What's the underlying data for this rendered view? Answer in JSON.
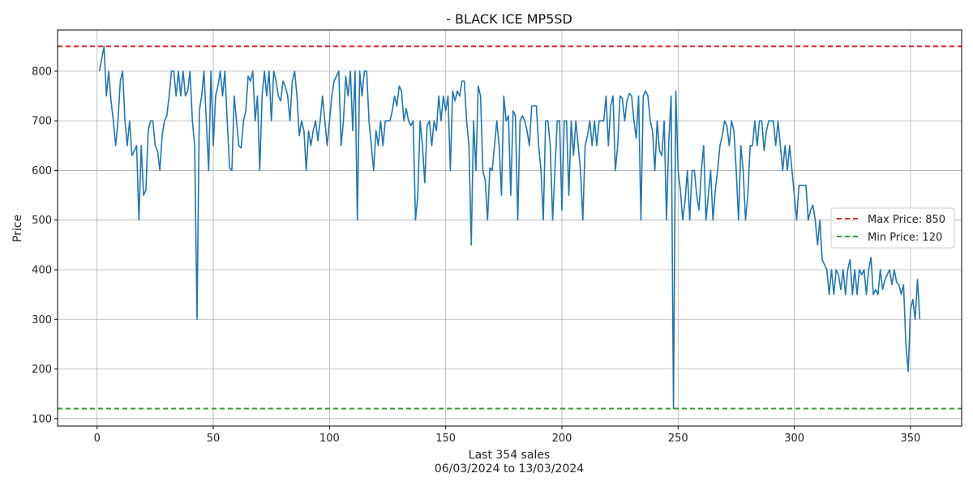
{
  "chart_data": {
    "type": "line",
    "title": "- BLACK ICE MP5SD",
    "xlabel": "Last 354 sales",
    "xlabel_sub": "06/03/2024 to 13/03/2024",
    "ylabel": "Price",
    "xlim": [
      -17,
      372
    ],
    "ylim": [
      85,
      883
    ],
    "xticks": [
      0,
      50,
      100,
      150,
      200,
      250,
      300,
      350
    ],
    "yticks": [
      100,
      200,
      300,
      400,
      500,
      600,
      700,
      800
    ],
    "grid": true,
    "legend_position": "center-right",
    "reference_lines": [
      {
        "name": "Max Price: 850",
        "value": 850,
        "color": "#d62728",
        "style": "dashed"
      },
      {
        "name": "Min Price: 120",
        "value": 120,
        "color": "#2ca02c",
        "style": "dashed"
      }
    ],
    "series": [
      {
        "color": "#1f77b4",
        "x": [
          1,
          3,
          4,
          5,
          6,
          7,
          8,
          9,
          10,
          11,
          12,
          13,
          14,
          15,
          16,
          17,
          18,
          19,
          20,
          21,
          22,
          23,
          24,
          25,
          26,
          27,
          28,
          29,
          30,
          31,
          32,
          33,
          34,
          35,
          36,
          37,
          38,
          39,
          40,
          41,
          42,
          43,
          44,
          45,
          46,
          47,
          48,
          49,
          50,
          51,
          52,
          53,
          54,
          55,
          56,
          57,
          58,
          59,
          60,
          61,
          62,
          63,
          64,
          65,
          66,
          67,
          68,
          69,
          70,
          71,
          72,
          73,
          74,
          75,
          76,
          77,
          78,
          79,
          80,
          81,
          82,
          83,
          84,
          85,
          86,
          87,
          88,
          89,
          90,
          91,
          92,
          93,
          94,
          95,
          96,
          97,
          98,
          99,
          100,
          101,
          102,
          103,
          104,
          105,
          106,
          107,
          108,
          109,
          110,
          111,
          112,
          113,
          114,
          115,
          116,
          117,
          118,
          119,
          120,
          121,
          122,
          123,
          124,
          125,
          126,
          127,
          128,
          129,
          130,
          131,
          132,
          133,
          134,
          135,
          136,
          137,
          138,
          139,
          140,
          141,
          142,
          143,
          144,
          145,
          146,
          147,
          148,
          149,
          150,
          151,
          152,
          153,
          154,
          155,
          156,
          157,
          158,
          159,
          160,
          161,
          162,
          163,
          164,
          165,
          166,
          167,
          168,
          169,
          170,
          171,
          172,
          173,
          174,
          175,
          176,
          177,
          178,
          179,
          180,
          181,
          182,
          183,
          184,
          185,
          186,
          187,
          188,
          189,
          190,
          191,
          192,
          193,
          194,
          195,
          196,
          197,
          198,
          199,
          200,
          201,
          202,
          203,
          204,
          205,
          206,
          207,
          208,
          209,
          210,
          211,
          212,
          213,
          214,
          215,
          216,
          217,
          218,
          219,
          220,
          221,
          222,
          223,
          224,
          225,
          226,
          227,
          228,
          229,
          230,
          231,
          232,
          233,
          234,
          235,
          236,
          237,
          238,
          239,
          240,
          241,
          242,
          243,
          244,
          245,
          246,
          247,
          248,
          249,
          250,
          251,
          252,
          253,
          254,
          255,
          256,
          257,
          258,
          259,
          260,
          261,
          262,
          263,
          264,
          265,
          266,
          267,
          268,
          269,
          270,
          271,
          272,
          273,
          274,
          275,
          276,
          277,
          278,
          279,
          280,
          281,
          282,
          283,
          284,
          285,
          286,
          287,
          288,
          289,
          290,
          291,
          292,
          293,
          294,
          295,
          296,
          297,
          298,
          299,
          300,
          301,
          302,
          303,
          304,
          305,
          306,
          307,
          308,
          309,
          310,
          311,
          312,
          313,
          314,
          315,
          316,
          317,
          318,
          319,
          320,
          321,
          322,
          323,
          324,
          325,
          326,
          327,
          328,
          329,
          330,
          331,
          332,
          333,
          334,
          335,
          336,
          337,
          338,
          339,
          340,
          341,
          342,
          343,
          344,
          345,
          346,
          347,
          348,
          349,
          350,
          351,
          352,
          353,
          354
        ],
        "y": [
          800,
          850,
          750,
          800,
          740,
          700,
          650,
          700,
          780,
          800,
          700,
          650,
          700,
          630,
          640,
          650,
          500,
          650,
          550,
          560,
          680,
          700,
          700,
          650,
          640,
          600,
          670,
          700,
          710,
          750,
          800,
          800,
          750,
          800,
          750,
          800,
          750,
          760,
          800,
          700,
          650,
          300,
          720,
          750,
          800,
          700,
          600,
          800,
          650,
          750,
          770,
          800,
          750,
          800,
          700,
          605,
          600,
          750,
          700,
          650,
          645,
          700,
          720,
          790,
          780,
          800,
          700,
          750,
          600,
          750,
          800,
          750,
          800,
          700,
          800,
          780,
          750,
          740,
          780,
          770,
          750,
          700,
          780,
          800,
          750,
          670,
          700,
          680,
          600,
          680,
          650,
          680,
          700,
          660,
          700,
          750,
          700,
          650,
          700,
          750,
          780,
          790,
          800,
          650,
          700,
          790,
          750,
          800,
          680,
          800,
          500,
          800,
          750,
          800,
          800,
          700,
          650,
          600,
          680,
          650,
          700,
          650,
          700,
          700,
          700,
          720,
          750,
          730,
          770,
          760,
          700,
          725,
          700,
          690,
          700,
          500,
          550,
          700,
          650,
          575,
          690,
          700,
          650,
          700,
          680,
          750,
          700,
          750,
          720,
          750,
          600,
          760,
          740,
          760,
          750,
          780,
          780,
          700,
          650,
          450,
          700,
          600,
          770,
          750,
          600,
          580,
          500,
          605,
          600,
          650,
          700,
          650,
          550,
          750,
          700,
          710,
          550,
          720,
          710,
          500,
          700,
          710,
          700,
          680,
          650,
          730,
          730,
          730,
          650,
          600,
          500,
          700,
          700,
          650,
          500,
          600,
          700,
          700,
          520,
          700,
          700,
          550,
          700,
          630,
          700,
          650,
          600,
          500,
          650,
          670,
          700,
          650,
          700,
          650,
          700,
          700,
          700,
          750,
          650,
          730,
          750,
          600,
          650,
          750,
          745,
          700,
          740,
          755,
          750,
          700,
          665,
          750,
          500,
          750,
          760,
          750,
          700,
          680,
          600,
          700,
          640,
          630,
          700,
          500,
          660,
          750,
          120,
          760,
          600,
          560,
          500,
          540,
          600,
          500,
          600,
          600,
          550,
          520,
          600,
          650,
          500,
          550,
          600,
          500,
          560,
          600,
          650,
          670,
          700,
          690,
          650,
          700,
          680,
          600,
          500,
          650,
          600,
          500,
          550,
          650,
          650,
          700,
          650,
          700,
          700,
          640,
          680,
          700,
          700,
          700,
          650,
          700,
          650,
          600,
          650,
          600,
          650,
          600,
          550,
          500,
          570,
          570,
          570,
          570,
          500,
          520,
          530,
          500,
          450,
          500,
          420,
          410,
          400,
          350,
          400,
          350,
          400,
          390,
          360,
          400,
          350,
          400,
          420,
          350,
          400,
          350,
          400,
          390,
          400,
          350,
          400,
          425,
          350,
          360,
          350,
          400,
          360,
          380,
          390,
          400,
          370,
          400,
          375,
          370,
          350,
          370,
          250,
          195,
          320,
          340,
          300,
          380,
          300
        ]
      }
    ]
  }
}
